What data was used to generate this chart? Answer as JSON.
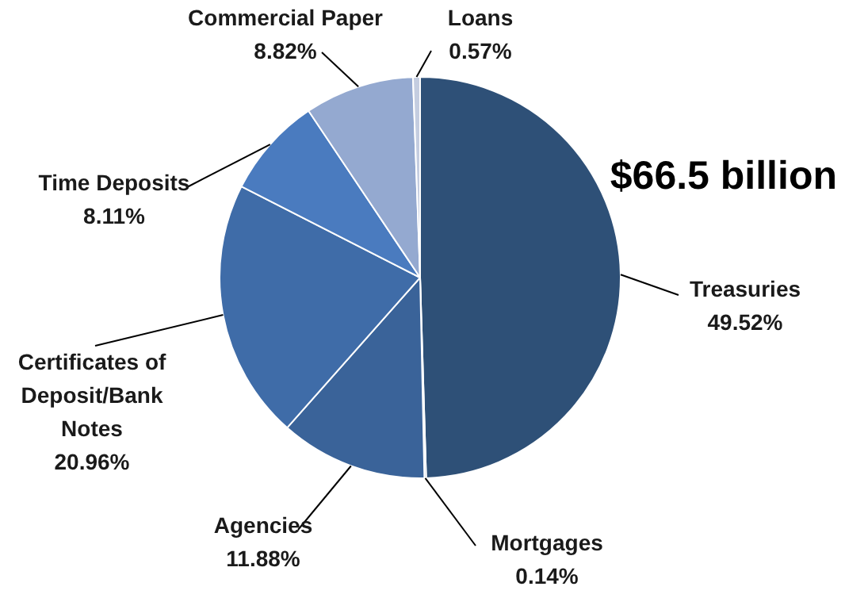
{
  "chart_data": {
    "type": "pie",
    "categories": [
      "Treasuries",
      "Mortgages",
      "Agencies",
      "Certificates of Deposit/Bank Notes",
      "Time Deposits",
      "Commercial Paper",
      "Loans"
    ],
    "values": [
      49.52,
      0.14,
      11.88,
      20.96,
      8.11,
      8.82,
      0.57
    ],
    "value_labels": [
      "49.52%",
      "0.14%",
      "11.88%",
      "20.96%",
      "8.11%",
      "8.82%",
      "0.57%"
    ],
    "colors": [
      "#2e5077",
      "#33598a",
      "#3a6399",
      "#3f6ca8",
      "#4a7bbf",
      "#94a9d0",
      "#c4cde0"
    ],
    "annotations": [
      "$66.5 billion"
    ],
    "legend": false
  }
}
